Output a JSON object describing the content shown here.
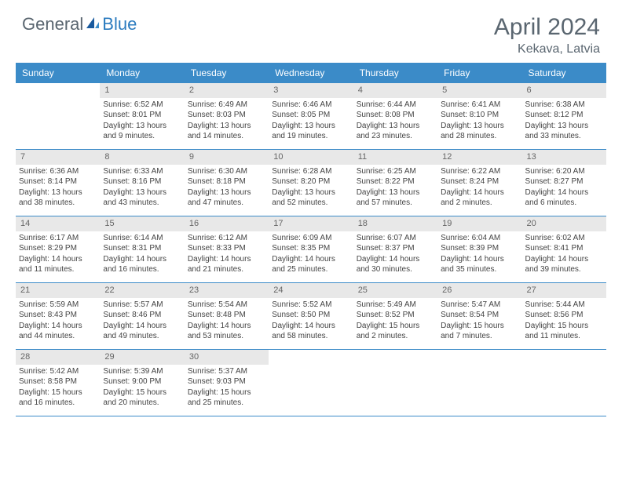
{
  "logo": {
    "general": "General",
    "blue": "Blue"
  },
  "title": "April 2024",
  "location": "Kekava, Latvia",
  "header_bg": "#3b8bc8",
  "daynum_bg": "#e8e8e8",
  "day_names": [
    "Sunday",
    "Monday",
    "Tuesday",
    "Wednesday",
    "Thursday",
    "Friday",
    "Saturday"
  ],
  "weeks": [
    [
      null,
      {
        "n": "1",
        "sr": "Sunrise: 6:52 AM",
        "ss": "Sunset: 8:01 PM",
        "d1": "Daylight: 13 hours",
        "d2": "and 9 minutes."
      },
      {
        "n": "2",
        "sr": "Sunrise: 6:49 AM",
        "ss": "Sunset: 8:03 PM",
        "d1": "Daylight: 13 hours",
        "d2": "and 14 minutes."
      },
      {
        "n": "3",
        "sr": "Sunrise: 6:46 AM",
        "ss": "Sunset: 8:05 PM",
        "d1": "Daylight: 13 hours",
        "d2": "and 19 minutes."
      },
      {
        "n": "4",
        "sr": "Sunrise: 6:44 AM",
        "ss": "Sunset: 8:08 PM",
        "d1": "Daylight: 13 hours",
        "d2": "and 23 minutes."
      },
      {
        "n": "5",
        "sr": "Sunrise: 6:41 AM",
        "ss": "Sunset: 8:10 PM",
        "d1": "Daylight: 13 hours",
        "d2": "and 28 minutes."
      },
      {
        "n": "6",
        "sr": "Sunrise: 6:38 AM",
        "ss": "Sunset: 8:12 PM",
        "d1": "Daylight: 13 hours",
        "d2": "and 33 minutes."
      }
    ],
    [
      {
        "n": "7",
        "sr": "Sunrise: 6:36 AM",
        "ss": "Sunset: 8:14 PM",
        "d1": "Daylight: 13 hours",
        "d2": "and 38 minutes."
      },
      {
        "n": "8",
        "sr": "Sunrise: 6:33 AM",
        "ss": "Sunset: 8:16 PM",
        "d1": "Daylight: 13 hours",
        "d2": "and 43 minutes."
      },
      {
        "n": "9",
        "sr": "Sunrise: 6:30 AM",
        "ss": "Sunset: 8:18 PM",
        "d1": "Daylight: 13 hours",
        "d2": "and 47 minutes."
      },
      {
        "n": "10",
        "sr": "Sunrise: 6:28 AM",
        "ss": "Sunset: 8:20 PM",
        "d1": "Daylight: 13 hours",
        "d2": "and 52 minutes."
      },
      {
        "n": "11",
        "sr": "Sunrise: 6:25 AM",
        "ss": "Sunset: 8:22 PM",
        "d1": "Daylight: 13 hours",
        "d2": "and 57 minutes."
      },
      {
        "n": "12",
        "sr": "Sunrise: 6:22 AM",
        "ss": "Sunset: 8:24 PM",
        "d1": "Daylight: 14 hours",
        "d2": "and 2 minutes."
      },
      {
        "n": "13",
        "sr": "Sunrise: 6:20 AM",
        "ss": "Sunset: 8:27 PM",
        "d1": "Daylight: 14 hours",
        "d2": "and 6 minutes."
      }
    ],
    [
      {
        "n": "14",
        "sr": "Sunrise: 6:17 AM",
        "ss": "Sunset: 8:29 PM",
        "d1": "Daylight: 14 hours",
        "d2": "and 11 minutes."
      },
      {
        "n": "15",
        "sr": "Sunrise: 6:14 AM",
        "ss": "Sunset: 8:31 PM",
        "d1": "Daylight: 14 hours",
        "d2": "and 16 minutes."
      },
      {
        "n": "16",
        "sr": "Sunrise: 6:12 AM",
        "ss": "Sunset: 8:33 PM",
        "d1": "Daylight: 14 hours",
        "d2": "and 21 minutes."
      },
      {
        "n": "17",
        "sr": "Sunrise: 6:09 AM",
        "ss": "Sunset: 8:35 PM",
        "d1": "Daylight: 14 hours",
        "d2": "and 25 minutes."
      },
      {
        "n": "18",
        "sr": "Sunrise: 6:07 AM",
        "ss": "Sunset: 8:37 PM",
        "d1": "Daylight: 14 hours",
        "d2": "and 30 minutes."
      },
      {
        "n": "19",
        "sr": "Sunrise: 6:04 AM",
        "ss": "Sunset: 8:39 PM",
        "d1": "Daylight: 14 hours",
        "d2": "and 35 minutes."
      },
      {
        "n": "20",
        "sr": "Sunrise: 6:02 AM",
        "ss": "Sunset: 8:41 PM",
        "d1": "Daylight: 14 hours",
        "d2": "and 39 minutes."
      }
    ],
    [
      {
        "n": "21",
        "sr": "Sunrise: 5:59 AM",
        "ss": "Sunset: 8:43 PM",
        "d1": "Daylight: 14 hours",
        "d2": "and 44 minutes."
      },
      {
        "n": "22",
        "sr": "Sunrise: 5:57 AM",
        "ss": "Sunset: 8:46 PM",
        "d1": "Daylight: 14 hours",
        "d2": "and 49 minutes."
      },
      {
        "n": "23",
        "sr": "Sunrise: 5:54 AM",
        "ss": "Sunset: 8:48 PM",
        "d1": "Daylight: 14 hours",
        "d2": "and 53 minutes."
      },
      {
        "n": "24",
        "sr": "Sunrise: 5:52 AM",
        "ss": "Sunset: 8:50 PM",
        "d1": "Daylight: 14 hours",
        "d2": "and 58 minutes."
      },
      {
        "n": "25",
        "sr": "Sunrise: 5:49 AM",
        "ss": "Sunset: 8:52 PM",
        "d1": "Daylight: 15 hours",
        "d2": "and 2 minutes."
      },
      {
        "n": "26",
        "sr": "Sunrise: 5:47 AM",
        "ss": "Sunset: 8:54 PM",
        "d1": "Daylight: 15 hours",
        "d2": "and 7 minutes."
      },
      {
        "n": "27",
        "sr": "Sunrise: 5:44 AM",
        "ss": "Sunset: 8:56 PM",
        "d1": "Daylight: 15 hours",
        "d2": "and 11 minutes."
      }
    ],
    [
      {
        "n": "28",
        "sr": "Sunrise: 5:42 AM",
        "ss": "Sunset: 8:58 PM",
        "d1": "Daylight: 15 hours",
        "d2": "and 16 minutes."
      },
      {
        "n": "29",
        "sr": "Sunrise: 5:39 AM",
        "ss": "Sunset: 9:00 PM",
        "d1": "Daylight: 15 hours",
        "d2": "and 20 minutes."
      },
      {
        "n": "30",
        "sr": "Sunrise: 5:37 AM",
        "ss": "Sunset: 9:03 PM",
        "d1": "Daylight: 15 hours",
        "d2": "and 25 minutes."
      },
      null,
      null,
      null,
      null
    ]
  ]
}
